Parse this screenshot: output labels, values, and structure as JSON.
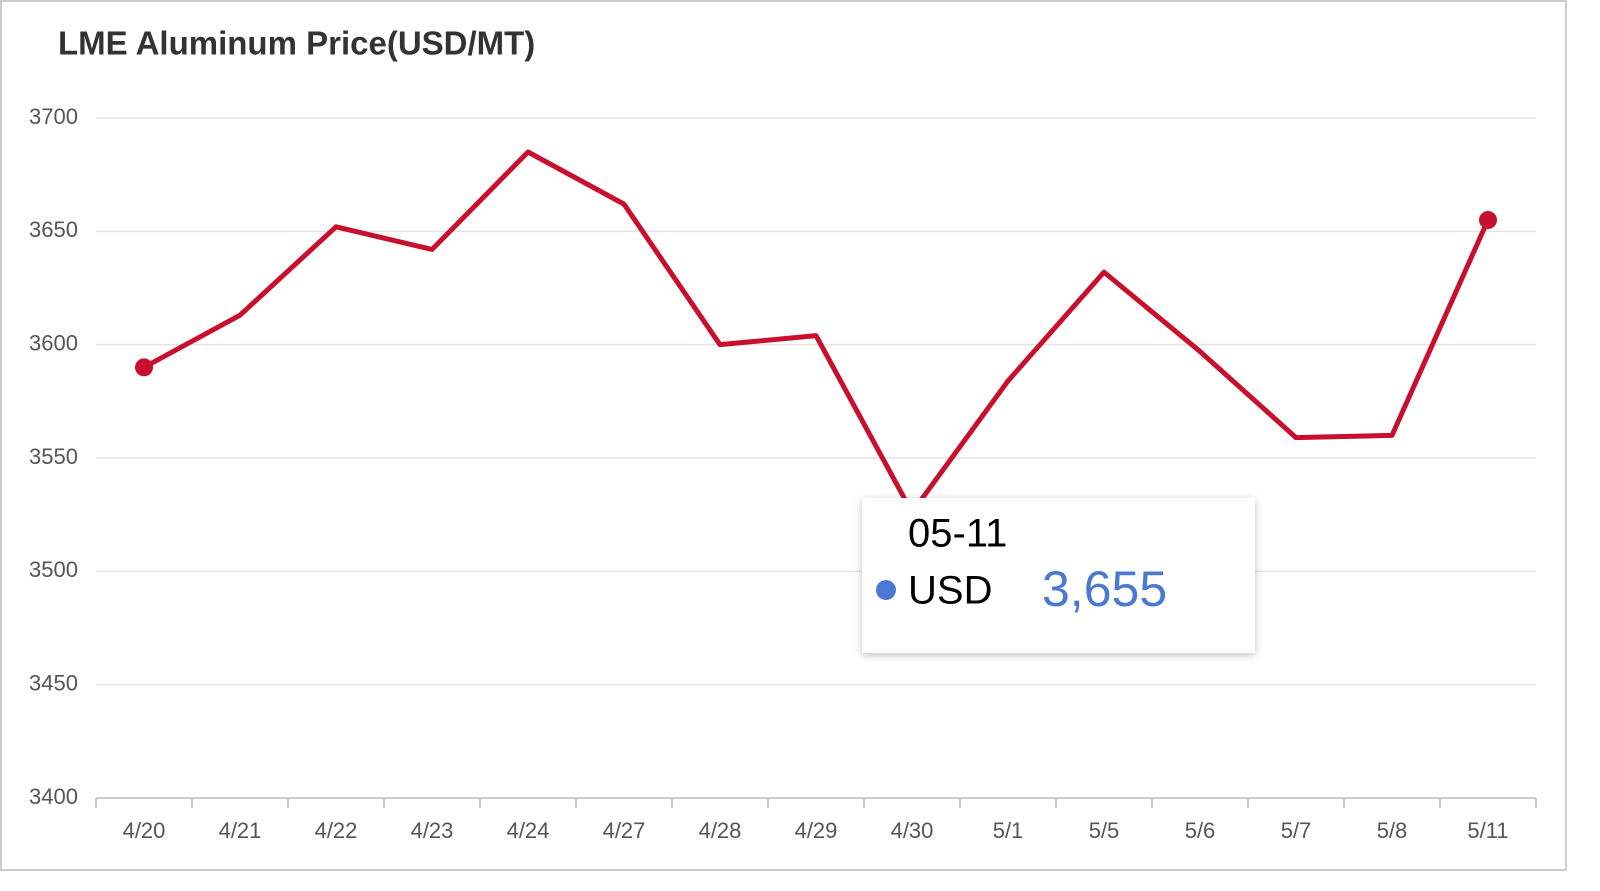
{
  "chart_data": {
    "type": "line",
    "title": "LME Aluminum Price(USD/MT)",
    "categories": [
      "4/20",
      "4/21",
      "4/22",
      "4/23",
      "4/24",
      "4/27",
      "4/28",
      "4/29",
      "4/30",
      "5/1",
      "5/5",
      "5/6",
      "5/7",
      "5/8",
      "5/11"
    ],
    "series": [
      {
        "name": "USD",
        "color": "#c8102e",
        "values": [
          3590,
          3613,
          3652,
          3642,
          3685,
          3662,
          3600,
          3604,
          3526,
          3584,
          3632,
          3597,
          3559,
          3560,
          3655
        ]
      }
    ],
    "ylim": [
      3400,
      3700
    ],
    "yticks": [
      3400,
      3450,
      3500,
      3550,
      3600,
      3650,
      3700
    ],
    "grid": true,
    "tooltip": {
      "title": "05-11",
      "color": "#4a78d4",
      "value_label": "3,655"
    }
  }
}
